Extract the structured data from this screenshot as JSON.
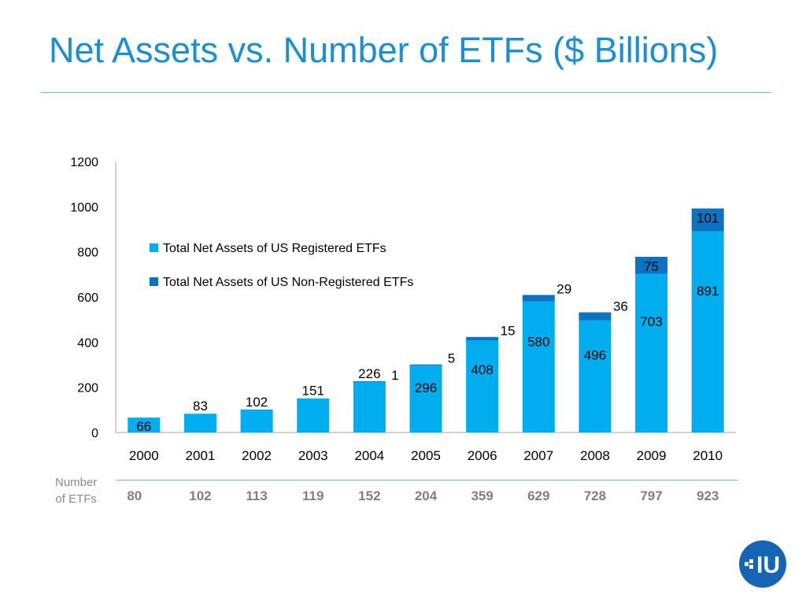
{
  "header": {
    "title": "Net Assets vs. Number of ETFs ($ Billions)"
  },
  "chart_data": {
    "type": "bar",
    "stacked": true,
    "categories": [
      "2000",
      "2001",
      "2002",
      "2003",
      "2004",
      "2005",
      "2006",
      "2007",
      "2008",
      "2009",
      "2010"
    ],
    "series": [
      {
        "name": "Total Net Assets of US Registered ETFs",
        "color": "#00aeef",
        "values": [
          66,
          83,
          102,
          151,
          226,
          296,
          408,
          580,
          496,
          703,
          891
        ]
      },
      {
        "name": "Total Net Assets of US Non-Registered ETFs",
        "color": "#0a73c2",
        "values": [
          0,
          0,
          0,
          0,
          1,
          5,
          15,
          29,
          36,
          75,
          101
        ],
        "labels": [
          "",
          "",
          "",
          "",
          "1",
          "5",
          "15",
          "29",
          "36",
          "75",
          "101"
        ]
      }
    ],
    "yticks": [
      "0",
      "200",
      "400",
      "600",
      "800",
      "1000",
      "1200"
    ],
    "ylim": [
      0,
      1200
    ],
    "grid": false,
    "legend_position": "upper-left"
  },
  "etf_counts": {
    "label_line1": "Number",
    "label_line2": "of ETFs",
    "values": [
      "80",
      "102",
      "113",
      "119",
      "152",
      "204",
      "359",
      "629",
      "728",
      "797",
      "923"
    ]
  },
  "logo": {
    "text": "IU",
    "icon": "cross-logo-icon",
    "color": "#1565b4"
  }
}
